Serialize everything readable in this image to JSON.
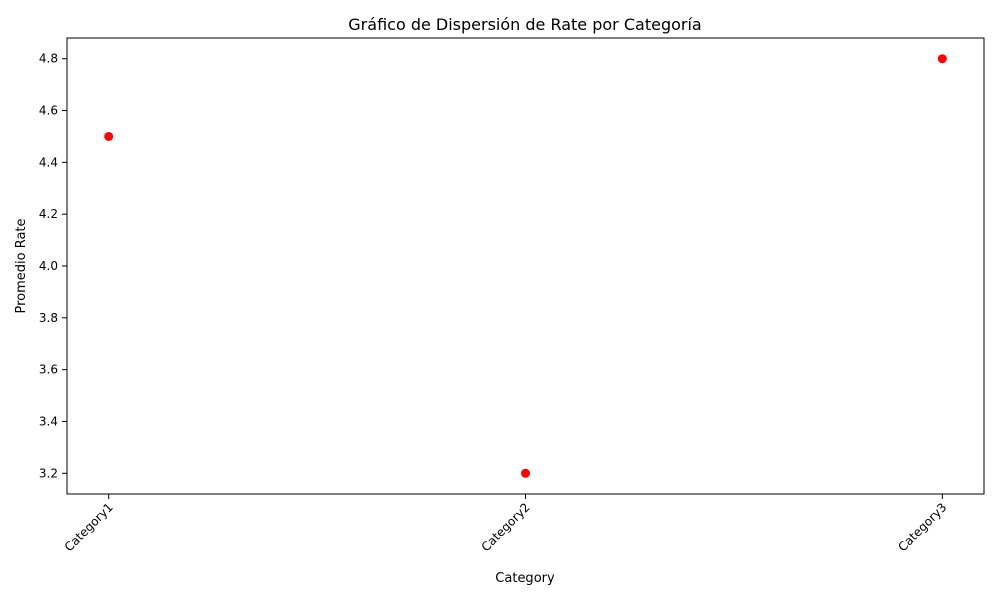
{
  "chart_data": {
    "type": "scatter",
    "title": "Gráfico de Dispersión de Rate por Categoría",
    "xlabel": "Category",
    "ylabel": "Promedio Rate",
    "categories": [
      "Category1",
      "Category2",
      "Category3"
    ],
    "values": [
      4.5,
      3.2,
      4.8
    ],
    "yticks": [
      "3.2",
      "3.4",
      "3.6",
      "3.8",
      "4.0",
      "4.2",
      "4.4",
      "4.6",
      "4.8"
    ],
    "ylim": [
      3.12,
      4.88
    ],
    "marker_color": "#ff0000",
    "grid": false,
    "legend": "none"
  }
}
